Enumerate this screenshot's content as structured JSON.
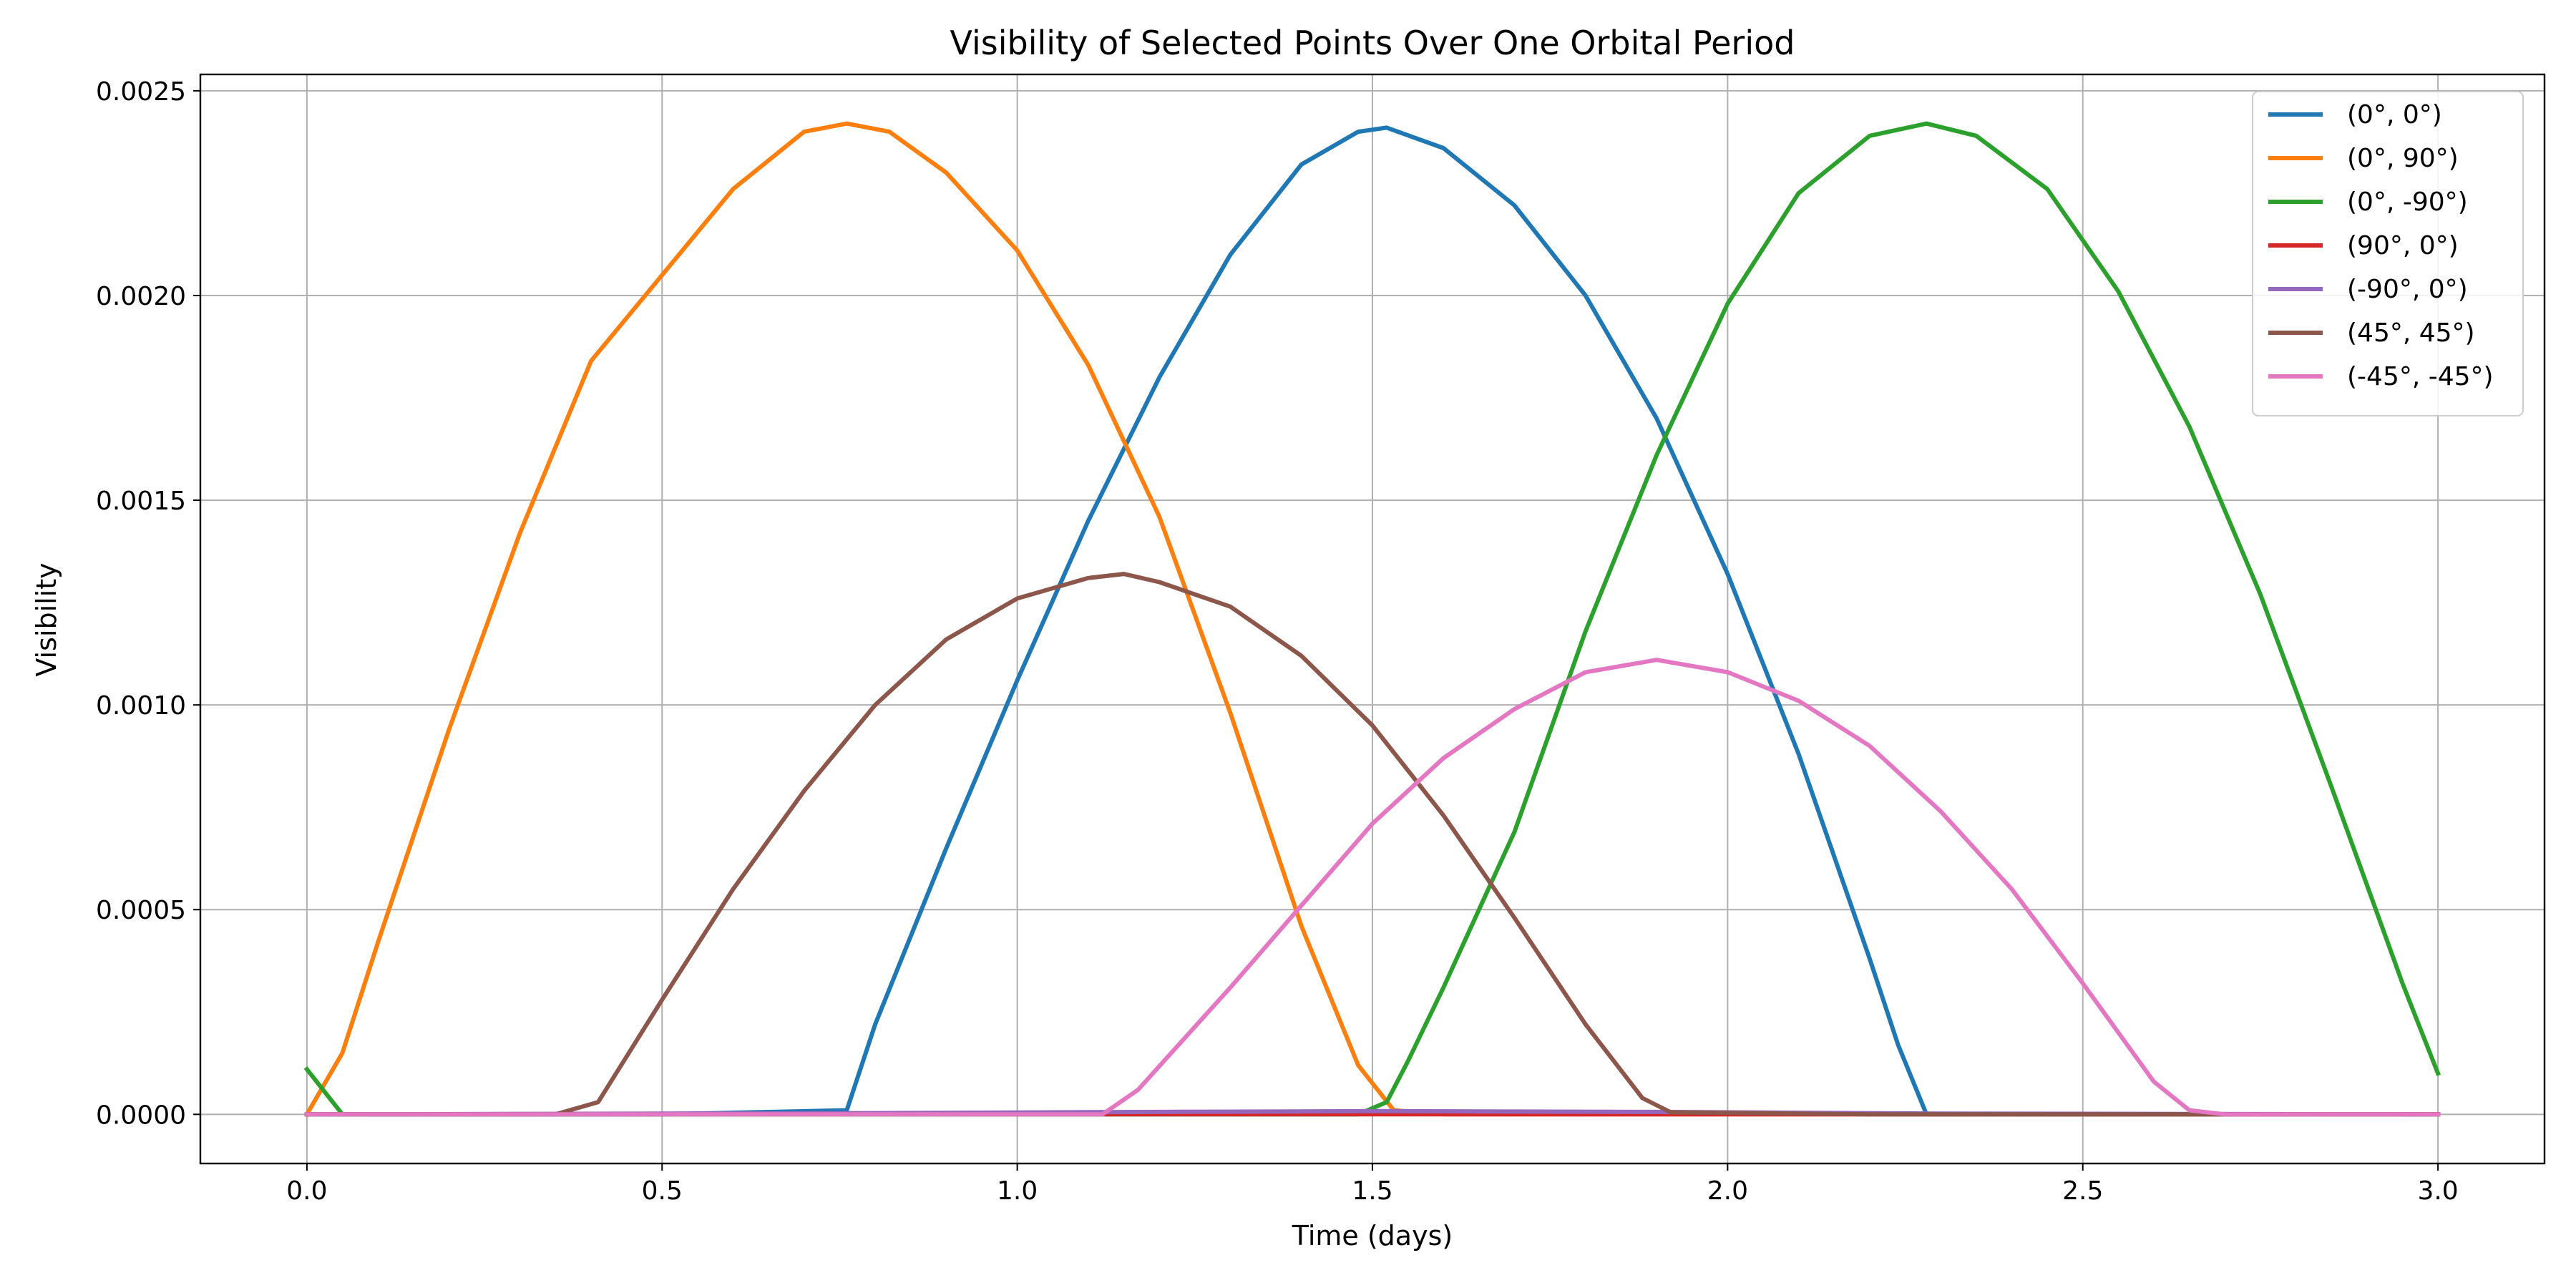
{
  "chart_data": {
    "type": "line",
    "title": "Visibility of Selected Points Over One Orbital Period",
    "xlabel": "Time (days)",
    "ylabel": "Visibility",
    "xlim": [
      -0.15,
      3.15
    ],
    "ylim": [
      -0.00012,
      0.00254
    ],
    "x_ticks": [
      "0.0",
      "0.5",
      "1.0",
      "1.5",
      "2.0",
      "2.5",
      "3.0"
    ],
    "y_ticks": [
      "0.0000",
      "0.0005",
      "0.0010",
      "0.0015",
      "0.0020",
      "0.0025"
    ],
    "grid": true,
    "legend_position": "top-right",
    "series": [
      {
        "name": "(0°, 0°)",
        "color": "#1f77b4",
        "points": [
          [
            0,
            0
          ],
          [
            0.5,
            0
          ],
          [
            0.76,
            1e-05
          ],
          [
            0.8,
            0.00022
          ],
          [
            0.9,
            0.00065
          ],
          [
            1.0,
            0.00106
          ],
          [
            1.1,
            0.00145
          ],
          [
            1.2,
            0.0018
          ],
          [
            1.3,
            0.0021
          ],
          [
            1.4,
            0.00232
          ],
          [
            1.48,
            0.0024
          ],
          [
            1.52,
            0.00241
          ],
          [
            1.6,
            0.00236
          ],
          [
            1.7,
            0.00222
          ],
          [
            1.8,
            0.002
          ],
          [
            1.9,
            0.0017
          ],
          [
            2.0,
            0.00132
          ],
          [
            2.1,
            0.00088
          ],
          [
            2.2,
            0.00038
          ],
          [
            2.24,
            0.00017
          ],
          [
            2.28,
            0.0
          ],
          [
            2.5,
            0
          ],
          [
            3.0,
            0
          ]
        ]
      },
      {
        "name": "(0°, 90°)",
        "color": "#ff7f0e",
        "points": [
          [
            0,
            0
          ],
          [
            0.05,
            0.00015
          ],
          [
            0.1,
            0.00042
          ],
          [
            0.2,
            0.00094
          ],
          [
            0.3,
            0.00142
          ],
          [
            0.4,
            0.00184
          ],
          [
            0.5,
            0.00205
          ],
          [
            0.6,
            0.00226
          ],
          [
            0.7,
            0.0024
          ],
          [
            0.76,
            0.00242
          ],
          [
            0.82,
            0.0024
          ],
          [
            0.9,
            0.0023
          ],
          [
            1.0,
            0.00211
          ],
          [
            1.1,
            0.00183
          ],
          [
            1.2,
            0.00146
          ],
          [
            1.3,
            0.00098
          ],
          [
            1.4,
            0.00046
          ],
          [
            1.48,
            0.00012
          ],
          [
            1.53,
            1e-05
          ],
          [
            1.6,
            0
          ],
          [
            3.0,
            0
          ]
        ]
      },
      {
        "name": "(0°, -90°)",
        "color": "#2ca02c",
        "points": [
          [
            0,
            0.00011
          ],
          [
            0.05,
            0
          ],
          [
            1.0,
            0
          ],
          [
            1.48,
            0
          ],
          [
            1.52,
            3e-05
          ],
          [
            1.55,
            0.00013
          ],
          [
            1.6,
            0.00031
          ],
          [
            1.7,
            0.00069
          ],
          [
            1.8,
            0.00118
          ],
          [
            1.9,
            0.00161
          ],
          [
            2.0,
            0.00198
          ],
          [
            2.1,
            0.00225
          ],
          [
            2.2,
            0.00239
          ],
          [
            2.28,
            0.00242
          ],
          [
            2.35,
            0.00239
          ],
          [
            2.45,
            0.00226
          ],
          [
            2.55,
            0.00201
          ],
          [
            2.65,
            0.00168
          ],
          [
            2.75,
            0.00127
          ],
          [
            2.85,
            0.0008
          ],
          [
            2.95,
            0.00032
          ],
          [
            3.0,
            0.0001
          ]
        ]
      },
      {
        "name": "(90°, 0°)",
        "color": "#d62728",
        "points": [
          [
            0,
            0
          ],
          [
            1.5,
            0
          ],
          [
            3.0,
            0
          ]
        ]
      },
      {
        "name": "(-90°, 0°)",
        "color": "#9467bd",
        "points": [
          [
            0,
            0
          ],
          [
            0.8,
            3e-06
          ],
          [
            1.2,
            6e-06
          ],
          [
            1.5,
            8e-06
          ],
          [
            1.9,
            6e-06
          ],
          [
            2.3,
            2e-06
          ],
          [
            3.0,
            0
          ]
        ]
      },
      {
        "name": "(45°, 45°)",
        "color": "#8c564b",
        "points": [
          [
            0,
            0
          ],
          [
            0.35,
            0
          ],
          [
            0.41,
            3e-05
          ],
          [
            0.5,
            0.00028
          ],
          [
            0.6,
            0.00055
          ],
          [
            0.7,
            0.00079
          ],
          [
            0.8,
            0.001
          ],
          [
            0.9,
            0.00116
          ],
          [
            1.0,
            0.00126
          ],
          [
            1.1,
            0.00131
          ],
          [
            1.15,
            0.00132
          ],
          [
            1.2,
            0.0013
          ],
          [
            1.3,
            0.00124
          ],
          [
            1.4,
            0.00112
          ],
          [
            1.5,
            0.00095
          ],
          [
            1.6,
            0.00073
          ],
          [
            1.7,
            0.00048
          ],
          [
            1.8,
            0.00022
          ],
          [
            1.88,
            4e-05
          ],
          [
            1.92,
            5e-06
          ],
          [
            2.2,
            0
          ],
          [
            3.0,
            0
          ]
        ]
      },
      {
        "name": "(-45°, -45°)",
        "color": "#e377c2",
        "points": [
          [
            0,
            0
          ],
          [
            1.12,
            0
          ],
          [
            1.17,
            6e-05
          ],
          [
            1.3,
            0.00031
          ],
          [
            1.4,
            0.00051
          ],
          [
            1.5,
            0.00071
          ],
          [
            1.6,
            0.00087
          ],
          [
            1.7,
            0.00099
          ],
          [
            1.8,
            0.00108
          ],
          [
            1.9,
            0.00111
          ],
          [
            2.0,
            0.00108
          ],
          [
            2.1,
            0.00101
          ],
          [
            2.2,
            0.0009
          ],
          [
            2.3,
            0.00074
          ],
          [
            2.4,
            0.00055
          ],
          [
            2.5,
            0.00032
          ],
          [
            2.6,
            8e-05
          ],
          [
            2.65,
            1e-05
          ],
          [
            2.7,
            0
          ],
          [
            3.0,
            0
          ]
        ]
      }
    ]
  }
}
